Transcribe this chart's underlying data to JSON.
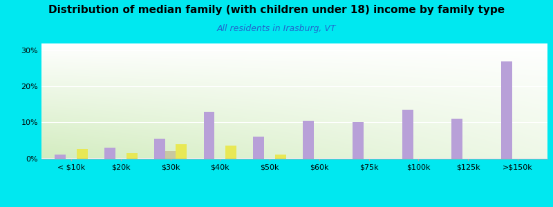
{
  "title": "Distribution of median family (with children under 18) income by family type",
  "subtitle": "All residents in Irasburg, VT",
  "categories": [
    "< $10k",
    "$20k",
    "$30k",
    "$40k",
    "$50k",
    "$60k",
    "$75k",
    "$100k",
    "$125k",
    ">$150k"
  ],
  "married_couple": [
    1.0,
    3.0,
    5.5,
    13.0,
    6.0,
    10.5,
    10.0,
    13.5,
    11.0,
    27.0
  ],
  "male_no_wife": [
    0.0,
    0.0,
    2.0,
    0.0,
    0.0,
    0.0,
    0.0,
    0.0,
    0.0,
    0.0
  ],
  "female_no_husband": [
    2.5,
    1.5,
    4.0,
    3.5,
    1.0,
    0.0,
    0.0,
    0.0,
    0.0,
    0.0
  ],
  "bar_width": 0.22,
  "married_color": "#b8a0d8",
  "male_color": "#c8c8a0",
  "female_color": "#e8e855",
  "bg_outer": "#00e8f0",
  "bg_top": "#f8fff8",
  "bg_bottom": "#d0ecc0",
  "ylim": [
    0,
    32
  ],
  "yticks": [
    0,
    10,
    20,
    30
  ],
  "ytick_labels": [
    "0%",
    "10%",
    "20%",
    "30%"
  ],
  "title_fontsize": 11,
  "subtitle_fontsize": 9,
  "tick_fontsize": 8
}
